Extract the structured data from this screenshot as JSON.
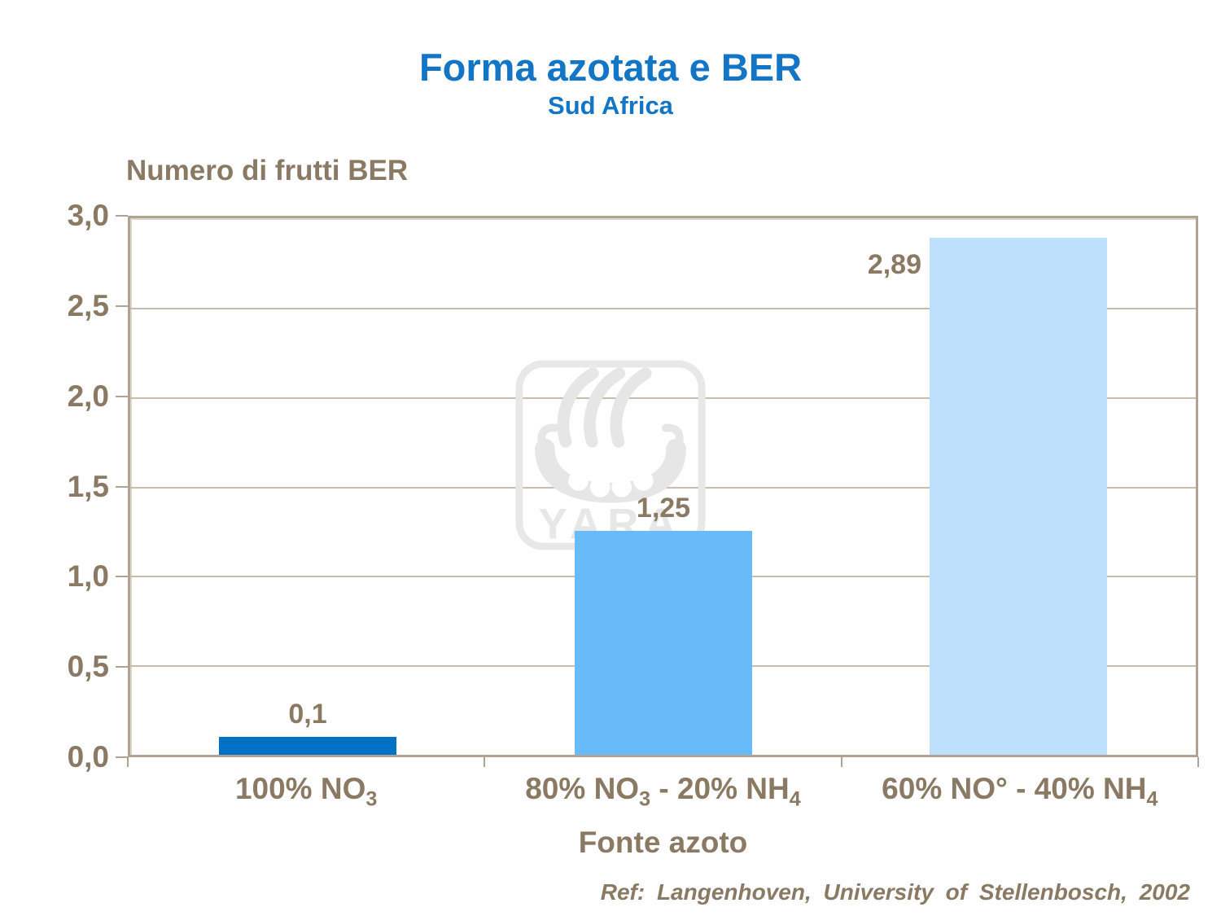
{
  "title": "Forma azotata e BER",
  "subtitle": "Sud Africa",
  "reference": "Ref: Langenhoven, University of Stellenbosch, 2002",
  "watermark": {
    "text": "YARA",
    "symbol": "viking-ship-logo"
  },
  "colors": {
    "title_blue": "#1375C6",
    "text_brown": "#8a7963",
    "axis_tan": "#b1a294",
    "gridline_tan": "#c8bcae",
    "bar_colors": [
      "#0072C6",
      "#66BBF8",
      "#BCDFFB"
    ],
    "watermark_gray": "#E8E8E8"
  },
  "chart_data": {
    "type": "bar",
    "title": "Forma azotata e BER",
    "subtitle": "Sud Africa",
    "ylabel": "Numero di frutti BER",
    "xlabel": "Fonte azoto",
    "categories_text": [
      "100% NO3",
      "80% NO3 - 20% NH4",
      "60% NO° - 40% NH4"
    ],
    "categories": [
      [
        {
          "t": "100% NO"
        },
        {
          "t": "3",
          "sub": true
        }
      ],
      [
        {
          "t": "80% NO"
        },
        {
          "t": "3",
          "sub": true
        },
        {
          "t": " - 20% NH"
        },
        {
          "t": "4",
          "sub": true
        }
      ],
      [
        {
          "t": "60% NO° - 40% NH"
        },
        {
          "t": "4",
          "sub": true
        }
      ]
    ],
    "values": [
      0.1,
      1.25,
      2.89
    ],
    "value_labels": [
      "0,1",
      "1,25",
      "2,89"
    ],
    "label_placement": [
      "above",
      "above",
      "left"
    ],
    "ylim": [
      0,
      3
    ],
    "y_ticks": [
      "0,0",
      "0,5",
      "1,0",
      "1,5",
      "2,0",
      "2,5",
      "3,0"
    ],
    "y_tick_values": [
      0,
      0.5,
      1,
      1.5,
      2,
      2.5,
      3
    ],
    "grid": true,
    "legend": "none"
  }
}
